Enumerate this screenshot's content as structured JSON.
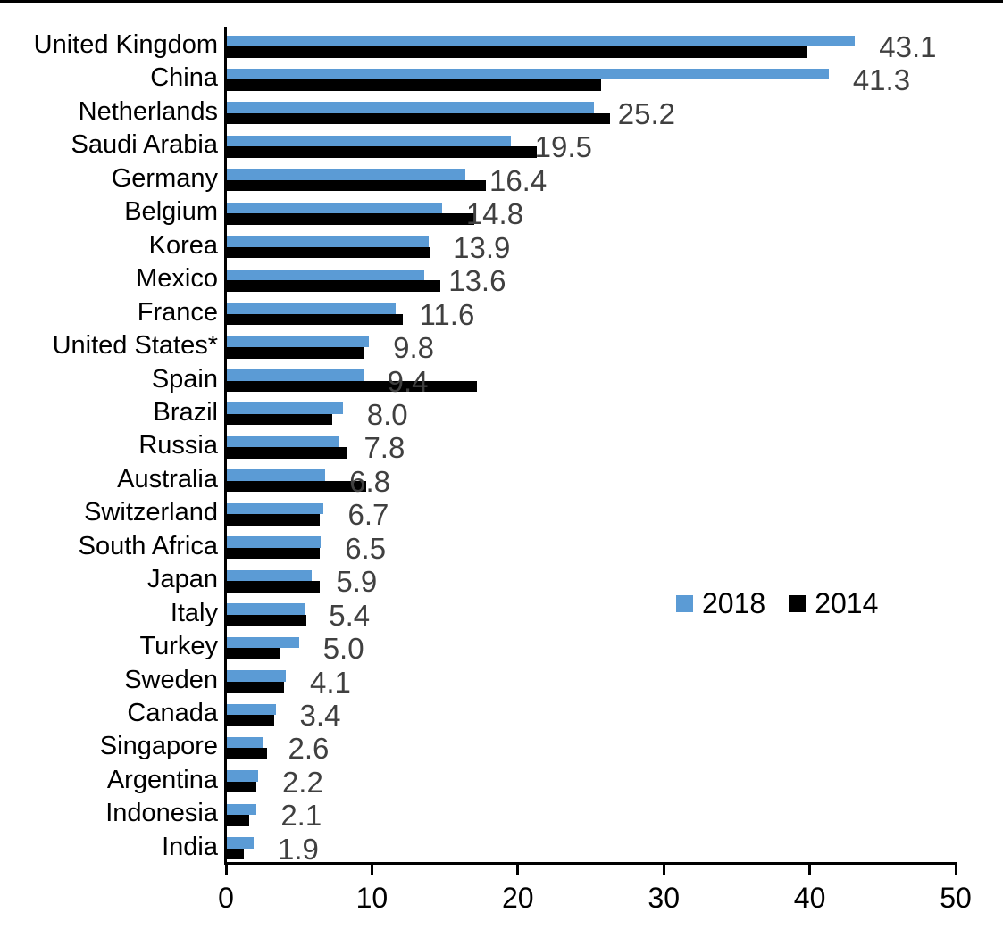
{
  "chart_data": {
    "type": "bar",
    "orientation": "horizontal",
    "title": "",
    "xlabel": "",
    "ylabel": "",
    "xlim": [
      0,
      50
    ],
    "x_ticks": [
      0,
      10,
      20,
      30,
      40,
      50
    ],
    "grid": false,
    "legend_position": "middle-right",
    "categories": [
      "United Kingdom",
      "China",
      "Netherlands",
      "Saudi Arabia",
      "Germany",
      "Belgium",
      "Korea",
      "Mexico",
      "France",
      "United States*",
      "Spain",
      "Brazil",
      "Russia",
      "Australia",
      "Switzerland",
      "South Africa",
      "Japan",
      "Italy",
      "Turkey",
      "Sweden",
      "Canada",
      "Singapore",
      "Argentina",
      "Indonesia",
      "India"
    ],
    "series": [
      {
        "name": "2018",
        "color": "#5B9BD5",
        "values": [
          43.1,
          41.3,
          25.2,
          19.5,
          16.4,
          14.8,
          13.9,
          13.6,
          11.6,
          9.8,
          9.4,
          8.0,
          7.8,
          6.8,
          6.7,
          6.5,
          5.9,
          5.4,
          5.0,
          4.1,
          3.4,
          2.6,
          2.2,
          2.1,
          1.9
        ]
      },
      {
        "name": "2014",
        "color": "#000000",
        "values": [
          39.8,
          25.7,
          26.3,
          21.3,
          17.8,
          17.0,
          14.0,
          14.7,
          12.1,
          9.5,
          17.2,
          7.3,
          8.3,
          9.6,
          6.4,
          6.4,
          6.4,
          5.5,
          3.7,
          4.0,
          3.3,
          2.8,
          2.1,
          1.6,
          1.2
        ]
      }
    ],
    "data_labels": {
      "series": "2018",
      "color": "#404040",
      "values": [
        "43.1",
        "41.3",
        "25.2",
        "19.5",
        "16.4",
        "14.8",
        "13.9",
        "13.6",
        "11.6",
        "9.8",
        "9.4",
        "8.0",
        "7.8",
        "6.8",
        "6.7",
        "6.5",
        "5.9",
        "5.4",
        "5.0",
        "4.1",
        "3.4",
        "2.6",
        "2.2",
        "2.1",
        "1.9"
      ]
    },
    "tick_labels": [
      "0",
      "10",
      "20",
      "30",
      "40",
      "50"
    ]
  }
}
